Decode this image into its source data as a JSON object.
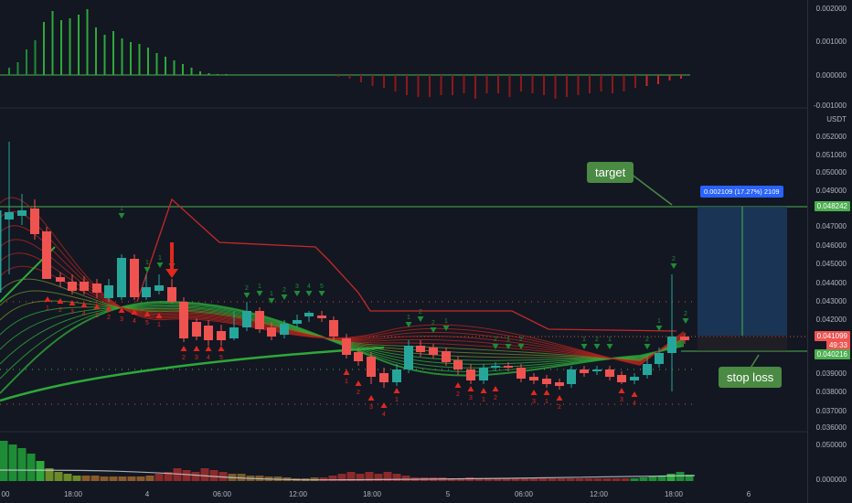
{
  "currency": "USDT",
  "osc_axis": [
    "0.002000",
    "0.001000",
    "0.000000",
    "-0.001000"
  ],
  "price_axis": [
    "0.052000",
    "0.051000",
    "0.050000",
    "0.049000",
    "0.047000",
    "0.046000",
    "0.045000",
    "0.044000",
    "0.043000",
    "0.042000",
    "0.039000",
    "0.038000",
    "0.037000",
    "0.036000"
  ],
  "vol_axis": [
    "0.050000",
    "0.000000"
  ],
  "price_tags": {
    "target": "0.048242",
    "last": "0.041099",
    "countdown": "49:33",
    "stop": "0.040216"
  },
  "x_axis": [
    "00",
    "18:00",
    "4",
    "06:00",
    "12:00",
    "18:00",
    "5",
    "06:00",
    "12:00",
    "18:00",
    "6"
  ],
  "position": {
    "label": "0.002109 (17.27%) 2109"
  },
  "annotations": {
    "target": "target",
    "stop_loss": "stop loss"
  },
  "signal_digits": {
    "green": [
      "1",
      "1",
      "1",
      "2",
      "2",
      "1",
      "1",
      "2",
      "3",
      "4",
      "5",
      "1",
      "2",
      "2",
      "1",
      "2",
      "1",
      "2",
      "1",
      "2",
      "1",
      "2",
      "1",
      "2",
      "2",
      "3",
      "4"
    ],
    "red": [
      "1",
      "2",
      "3",
      "4",
      "1",
      "2",
      "3",
      "4",
      "5",
      "1",
      "2",
      "3",
      "4",
      "5",
      "1",
      "2",
      "3",
      "4",
      "1",
      "2",
      "3",
      "1",
      "2",
      "3"
    ]
  },
  "colors": {
    "bg": "#131722",
    "up": "#26a69a",
    "down": "#ef5350",
    "signal_up": "#1e8c34",
    "signal_down": "#e0281f",
    "target_line": "#4caf50",
    "position_fill": "#1c3a5e",
    "callout": "#4a8a43"
  }
}
